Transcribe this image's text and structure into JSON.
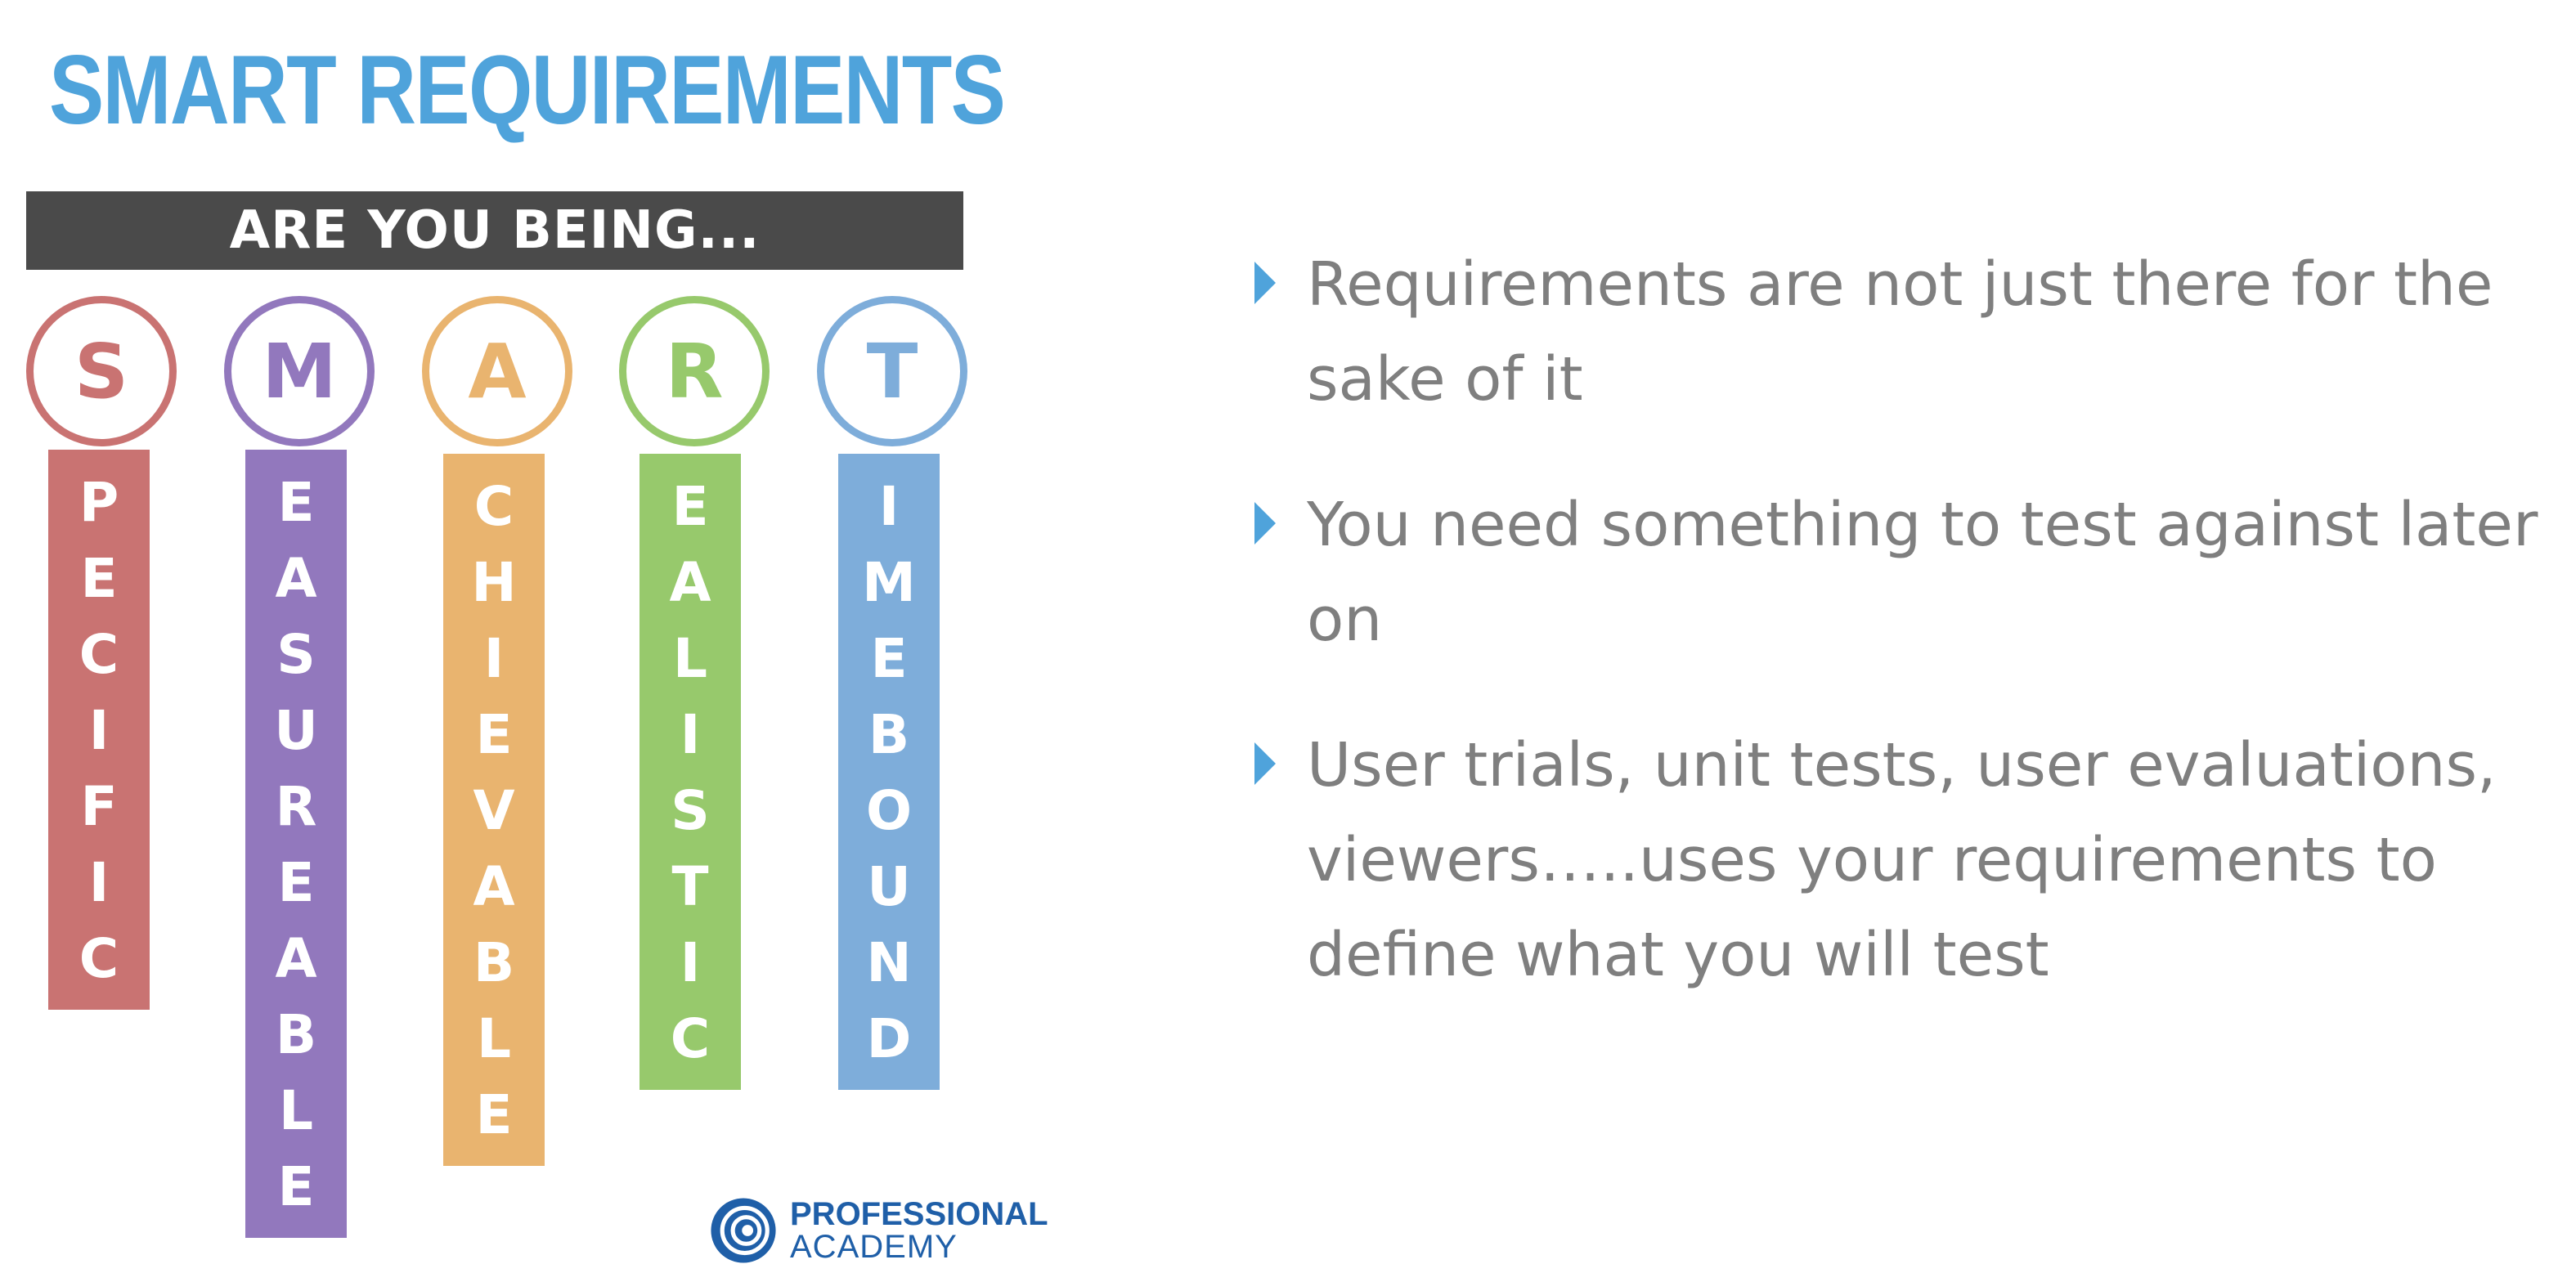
{
  "title": "SMART REQUIREMENTS",
  "banner": "ARE YOU BEING...",
  "smart": [
    {
      "initial": "S",
      "rest": [
        "P",
        "E",
        "C",
        "I",
        "F",
        "I",
        "C"
      ],
      "color": "#c97372"
    },
    {
      "initial": "M",
      "rest": [
        "E",
        "A",
        "S",
        "U",
        "R",
        "E",
        "A",
        "B",
        "L",
        "E"
      ],
      "color": "#9278bd"
    },
    {
      "initial": "A",
      "rest": [
        "C",
        "H",
        "I",
        "E",
        "V",
        "A",
        "B",
        "L",
        "E"
      ],
      "color": "#e9b46f"
    },
    {
      "initial": "R",
      "rest": [
        "E",
        "A",
        "L",
        "I",
        "S",
        "T",
        "I",
        "C"
      ],
      "color": "#97c96c"
    },
    {
      "initial": "T",
      "rest": [
        "I",
        "M",
        "E",
        "B",
        "O",
        "U",
        "N",
        "D"
      ],
      "color": "#7eadda"
    }
  ],
  "bullets": [
    {
      "text": "Requirements are not just there for the sake of it"
    },
    {
      "text": "You need something to test against later on"
    },
    {
      "text": "User trials, unit tests, user evaluations, viewers…..uses your requirements to define what you will test"
    }
  ],
  "logo": {
    "line1": "PROFESSIONAL",
    "line2": "ACADEMY",
    "icon": "professional-academy-logo-icon",
    "color": "#1f5fa8"
  },
  "accent": "#4fa3db"
}
